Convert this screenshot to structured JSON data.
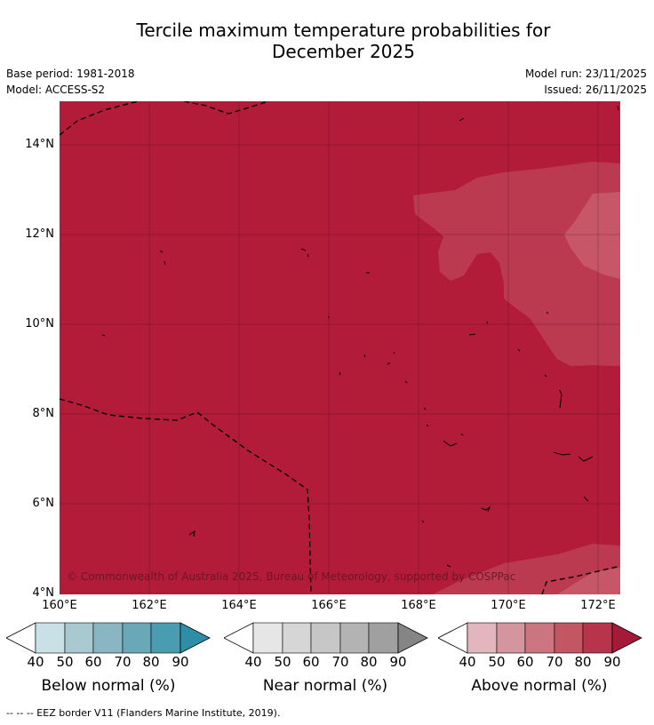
{
  "header": {
    "title_line1": "Tercile maximum temperature probabilities for",
    "title_line2": "December 2025",
    "base_period": "Base period: 1981-2018",
    "model": "Model: ACCESS-S2",
    "model_run": "Model run: 23/11/2025",
    "issued": "Issued: 26/11/2025"
  },
  "map": {
    "lat_labels": [
      "14°N",
      "12°N",
      "10°N",
      "8°N",
      "6°N",
      "4°N"
    ],
    "lon_labels": [
      "160°E",
      "162°E",
      "164°E",
      "166°E",
      "168°E",
      "170°E",
      "172°E"
    ],
    "copyright": "© Commonwealth of Australia 2025, Bureau of Meteorology, supported by COSPPac",
    "colors": {
      "above_90": "#b31c38",
      "above_80": "#bb3a4f",
      "above_70": "#c75666",
      "border_line": "#000000"
    }
  },
  "colorbars": {
    "ticks": [
      "40",
      "50",
      "60",
      "70",
      "80",
      "90"
    ],
    "below": {
      "label": "Below normal (%)",
      "colors": [
        "#ffffff",
        "#c9e1e6",
        "#a8c9cf",
        "#89b6c2",
        "#6aa8b8",
        "#4a9cb0",
        "#2e8ea6"
      ]
    },
    "near": {
      "label": "Near normal (%)",
      "colors": [
        "#ffffff",
        "#e6e6e6",
        "#d6d6d6",
        "#c6c6c6",
        "#b3b3b3",
        "#a0a0a0",
        "#858585"
      ]
    },
    "above": {
      "label": "Above normal (%)",
      "colors": [
        "#ffffff",
        "#e2b6bc",
        "#d5959f",
        "#cb7580",
        "#c25663",
        "#b8344a",
        "#a51a38"
      ]
    }
  },
  "footnote": "--  --  -- EEZ border V11 (Flanders Marine Institute, 2019)."
}
